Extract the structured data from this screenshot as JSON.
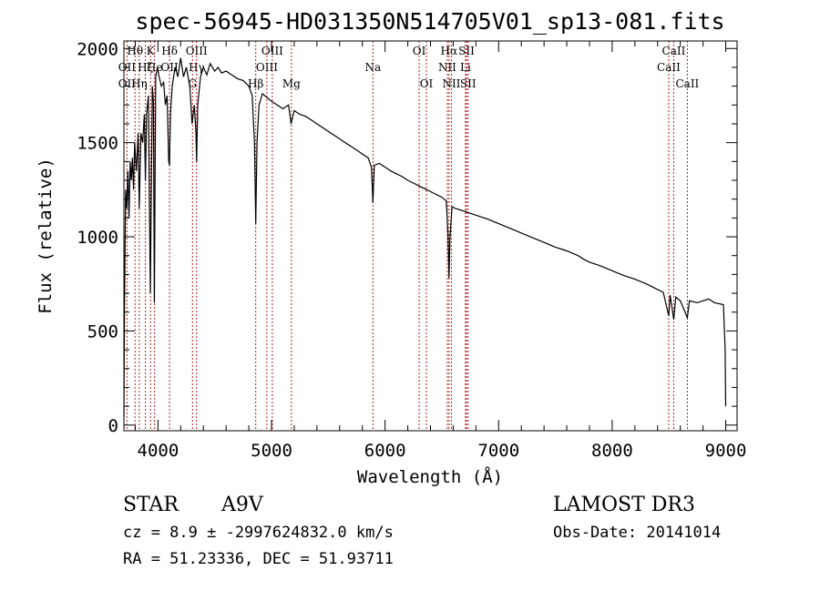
{
  "chart_data": {
    "type": "line",
    "title": "spec-56945-HD031350N514705V01_sp13-081.fits",
    "xlabel": "Wavelength (Å)",
    "ylabel": "Flux (relative)",
    "xlim": [
      3700,
      9100
    ],
    "ylim": [
      -30,
      2040
    ],
    "xticks": [
      4000,
      5000,
      6000,
      7000,
      8000,
      9000
    ],
    "yticks": [
      0,
      500,
      1000,
      1500,
      2000
    ],
    "series": [
      {
        "name": "spectrum",
        "color": "#000000",
        "points": [
          [
            3700,
            40
          ],
          [
            3705,
            600
          ],
          [
            3715,
            1250
          ],
          [
            3725,
            1150
          ],
          [
            3735,
            1350
          ],
          [
            3745,
            1100
          ],
          [
            3755,
            1400
          ],
          [
            3765,
            1300
          ],
          [
            3775,
            1420
          ],
          [
            3785,
            1250
          ],
          [
            3795,
            1500
          ],
          [
            3810,
            1350
          ],
          [
            3825,
            1550
          ],
          [
            3835,
            1150
          ],
          [
            3850,
            1550
          ],
          [
            3865,
            1500
          ],
          [
            3880,
            1650
          ],
          [
            3889,
            1300
          ],
          [
            3900,
            1650
          ],
          [
            3915,
            1750
          ],
          [
            3933,
            700
          ],
          [
            3950,
            1800
          ],
          [
            3960,
            1720
          ],
          [
            3968,
            650
          ],
          [
            3980,
            1850
          ],
          [
            3995,
            1900
          ],
          [
            4010,
            1850
          ],
          [
            4030,
            1800
          ],
          [
            4050,
            1820
          ],
          [
            4065,
            1700
          ],
          [
            4080,
            1750
          ],
          [
            4095,
            1400
          ],
          [
            4101,
            1380
          ],
          [
            4110,
            1650
          ],
          [
            4125,
            1800
          ],
          [
            4150,
            1900
          ],
          [
            4175,
            1850
          ],
          [
            4200,
            1950
          ],
          [
            4225,
            1850
          ],
          [
            4250,
            1900
          ],
          [
            4280,
            1800
          ],
          [
            4300,
            1600
          ],
          [
            4320,
            1700
          ],
          [
            4335,
            1550
          ],
          [
            4340,
            1400
          ],
          [
            4350,
            1700
          ],
          [
            4375,
            1850
          ],
          [
            4400,
            1900
          ],
          [
            4430,
            1860
          ],
          [
            4460,
            1920
          ],
          [
            4500,
            1880
          ],
          [
            4530,
            1900
          ],
          [
            4560,
            1870
          ],
          [
            4600,
            1880
          ],
          [
            4650,
            1860
          ],
          [
            4700,
            1840
          ],
          [
            4750,
            1830
          ],
          [
            4800,
            1800
          ],
          [
            4830,
            1750
          ],
          [
            4850,
            1500
          ],
          [
            4861,
            1070
          ],
          [
            4872,
            1500
          ],
          [
            4890,
            1700
          ],
          [
            4920,
            1760
          ],
          [
            4960,
            1740
          ],
          [
            5000,
            1720
          ],
          [
            5050,
            1700
          ],
          [
            5100,
            1680
          ],
          [
            5150,
            1700
          ],
          [
            5172,
            1600
          ],
          [
            5200,
            1670
          ],
          [
            5250,
            1650
          ],
          [
            5300,
            1640
          ],
          [
            5350,
            1620
          ],
          [
            5400,
            1600
          ],
          [
            5450,
            1580
          ],
          [
            5500,
            1560
          ],
          [
            5550,
            1540
          ],
          [
            5600,
            1520
          ],
          [
            5650,
            1500
          ],
          [
            5700,
            1480
          ],
          [
            5750,
            1460
          ],
          [
            5800,
            1440
          ],
          [
            5850,
            1420
          ],
          [
            5880,
            1370
          ],
          [
            5893,
            1180
          ],
          [
            5905,
            1380
          ],
          [
            5950,
            1390
          ],
          [
            6000,
            1370
          ],
          [
            6050,
            1350
          ],
          [
            6100,
            1335
          ],
          [
            6150,
            1320
          ],
          [
            6200,
            1300
          ],
          [
            6250,
            1285
          ],
          [
            6300,
            1270
          ],
          [
            6350,
            1255
          ],
          [
            6400,
            1240
          ],
          [
            6450,
            1225
          ],
          [
            6500,
            1210
          ],
          [
            6540,
            1190
          ],
          [
            6555,
            1000
          ],
          [
            6563,
            780
          ],
          [
            6572,
            1000
          ],
          [
            6590,
            1160
          ],
          [
            6620,
            1150
          ],
          [
            6650,
            1145
          ],
          [
            6700,
            1135
          ],
          [
            6750,
            1125
          ],
          [
            6800,
            1115
          ],
          [
            6900,
            1095
          ],
          [
            7000,
            1070
          ],
          [
            7100,
            1045
          ],
          [
            7200,
            1020
          ],
          [
            7300,
            995
          ],
          [
            7400,
            970
          ],
          [
            7500,
            945
          ],
          [
            7600,
            925
          ],
          [
            7700,
            900
          ],
          [
            7750,
            880
          ],
          [
            7800,
            865
          ],
          [
            7900,
            845
          ],
          [
            8000,
            820
          ],
          [
            8100,
            795
          ],
          [
            8200,
            775
          ],
          [
            8300,
            750
          ],
          [
            8400,
            720
          ],
          [
            8450,
            705
          ],
          [
            8498,
            580
          ],
          [
            8510,
            690
          ],
          [
            8542,
            560
          ],
          [
            8560,
            680
          ],
          [
            8600,
            660
          ],
          [
            8662,
            570
          ],
          [
            8680,
            660
          ],
          [
            8750,
            650
          ],
          [
            8800,
            660
          ],
          [
            8850,
            670
          ],
          [
            8900,
            650
          ],
          [
            8980,
            640
          ],
          [
            8995,
            400
          ],
          [
            9000,
            100
          ]
        ]
      }
    ],
    "line_markers": [
      {
        "label": "Hθ",
        "wavelength": 3798,
        "row": 1
      },
      {
        "label": "OII",
        "wavelength": 3727,
        "row": 2
      },
      {
        "label": "OII",
        "wavelength": 3727,
        "row": 3
      },
      {
        "label": "Hη",
        "wavelength": 3835,
        "row": 3
      },
      {
        "label": "Hζ",
        "wavelength": 3889,
        "row": 2
      },
      {
        "label": "K",
        "wavelength": 3934,
        "row": 1
      },
      {
        "label": "He",
        "wavelength": 3970,
        "row": 2
      },
      {
        "label": "Hδ",
        "wavelength": 4102,
        "row": 1
      },
      {
        "label": "OII",
        "wavelength": 4102,
        "row": 2
      },
      {
        "label": "OIII",
        "wavelength": 4340,
        "row": 1
      },
      {
        "label": "Hγ",
        "wavelength": 4340,
        "row": 2
      },
      {
        "label": "G",
        "wavelength": 4304,
        "row": 3
      },
      {
        "label": "OIII",
        "wavelength": 5007,
        "row": 1
      },
      {
        "label": "OIII",
        "wavelength": 4959,
        "row": 2
      },
      {
        "label": "Hβ",
        "wavelength": 4861,
        "row": 3
      },
      {
        "label": "Mg",
        "wavelength": 5175,
        "row": 3
      },
      {
        "label": "Na",
        "wavelength": 5893,
        "row": 2
      },
      {
        "label": "OI",
        "wavelength": 6300,
        "row": 1
      },
      {
        "label": "OI",
        "wavelength": 6364,
        "row": 3
      },
      {
        "label": "Hα",
        "wavelength": 6563,
        "row": 1
      },
      {
        "label": "NII",
        "wavelength": 6548,
        "row": 2
      },
      {
        "label": "NII",
        "wavelength": 6584,
        "row": 3
      },
      {
        "label": "SII",
        "wavelength": 6717,
        "row": 1
      },
      {
        "label": "Li",
        "wavelength": 6708,
        "row": 2
      },
      {
        "label": "SII",
        "wavelength": 6731,
        "row": 3
      },
      {
        "label": "CaII",
        "wavelength": 8498,
        "row": 2
      },
      {
        "label": "CaII",
        "wavelength": 8542,
        "row": 1
      },
      {
        "label": "CaII",
        "wavelength": 8662,
        "row": 3
      }
    ],
    "line_marker_color": "#b22222"
  },
  "info": {
    "object_class": "STAR",
    "subclass": "A9V",
    "survey": "LAMOST DR3",
    "velocity": "cz = 8.9 ± -2997624832.0 km/s",
    "obs_date": "Obs-Date: 20141014",
    "coords": "RA =  51.23336, DEC =  51.93711"
  }
}
